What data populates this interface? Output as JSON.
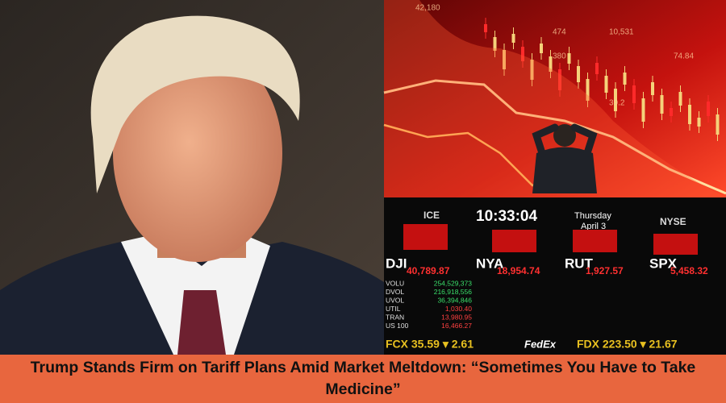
{
  "headline": "Trump Stands Firm on Tariff Plans Amid Market Meltdown: “Sometimes You Have to Take Medicine”",
  "chart_labels": [
    "42,180",
    "474",
    "10,531",
    "380",
    "74.84",
    "39.2"
  ],
  "board": {
    "time": "10:33:04",
    "day": "Thursday",
    "date": "April 3",
    "exchanges": [
      "ICE",
      "NYSE"
    ],
    "indices": [
      {
        "name": "DJI",
        "value": "40,789.87"
      },
      {
        "name": "NYA",
        "value": "18,954.74"
      },
      {
        "name": "RUT",
        "value": "1,927.57"
      },
      {
        "name": "SPX",
        "value": "5,458.32"
      }
    ],
    "rows": [
      {
        "name": "VOLU",
        "value": "254,529,373"
      },
      {
        "name": "DVOL",
        "value": "216,918,556"
      },
      {
        "name": "UVOL",
        "value": "36,394,846"
      },
      {
        "name": "UTIL",
        "value": "1,030.40"
      },
      {
        "name": "TRAN",
        "value": "13,980.95"
      },
      {
        "name": "US 100",
        "value": "16,466.27"
      }
    ],
    "ticker": [
      "FCX 35.59 ▾ 2.61",
      "FedEx",
      "FDX 223.50 ▾ 21.67"
    ]
  }
}
